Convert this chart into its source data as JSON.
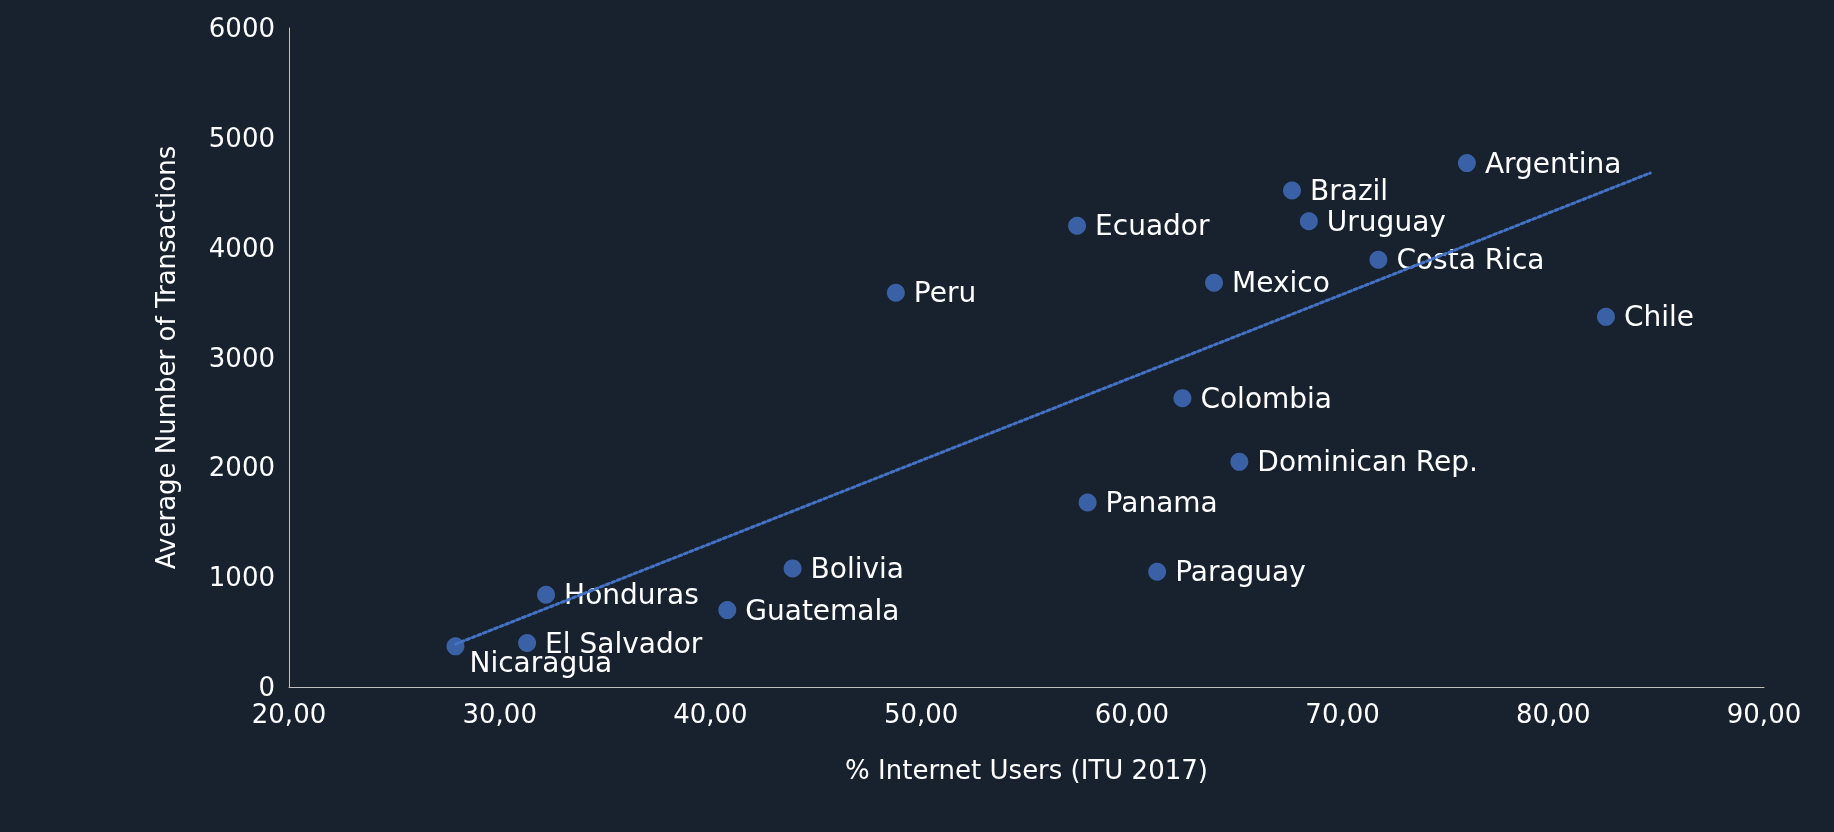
{
  "chart_data": {
    "type": "scatter",
    "xlabel": "% Internet Users (ITU 2017)",
    "ylabel": "Average Number of Transactions",
    "xlim": [
      20,
      90
    ],
    "xticks": [
      {
        "value": 20,
        "label": "20,00"
      },
      {
        "value": 30,
        "label": "30,00"
      },
      {
        "value": 40,
        "label": "40,00"
      },
      {
        "value": 50,
        "label": "50,00"
      },
      {
        "value": 60,
        "label": "60,00"
      },
      {
        "value": 70,
        "label": "70,00"
      },
      {
        "value": 80,
        "label": "80,00"
      },
      {
        "value": 90,
        "label": "90,00"
      }
    ],
    "ylim": [
      0,
      6000
    ],
    "yticks": [
      0,
      1000,
      2000,
      3000,
      4000,
      5000,
      6000
    ],
    "grid": false,
    "marker": "circle",
    "series": [
      {
        "color": "#4472c4",
        "x": [
          27.9,
          31.3,
          32.2,
          40.8,
          43.9,
          48.8,
          57.4,
          57.9,
          61.2,
          62.4,
          63.9,
          65.1,
          67.6,
          68.4,
          71.7,
          75.9,
          82.5
        ],
        "values": [
          370,
          400,
          840,
          700,
          1080,
          3590,
          4200,
          1680,
          1050,
          2630,
          3680,
          2050,
          4520,
          4240,
          3890,
          4770,
          3370
        ]
      },
      {
        "type": "line",
        "color": "#4472c4",
        "line_style": "dotted",
        "marker": "none",
        "x": [
          27.9,
          84.6
        ],
        "values": [
          390,
          4680
        ]
      }
    ],
    "annotations": [
      {
        "text": "El Salvador",
        "x": 31.3,
        "y": 400
      },
      {
        "text": "Nicaragua",
        "x": 27.9,
        "y": 370
      },
      {
        "text": "Honduras",
        "x": 32.2,
        "y": 840
      },
      {
        "text": "Guatemala",
        "x": 40.8,
        "y": 700
      },
      {
        "text": "Bolivia",
        "x": 43.9,
        "y": 1080
      },
      {
        "text": "Peru",
        "x": 48.8,
        "y": 3590
      },
      {
        "text": "Ecuador",
        "x": 57.4,
        "y": 4200
      },
      {
        "text": "Panama",
        "x": 57.9,
        "y": 1680
      },
      {
        "text": "Paraguay",
        "x": 61.2,
        "y": 1050
      },
      {
        "text": "Colombia",
        "x": 62.4,
        "y": 2630
      },
      {
        "text": "Mexico",
        "x": 63.9,
        "y": 3680
      },
      {
        "text": "Dominican Rep.",
        "x": 65.1,
        "y": 2050
      },
      {
        "text": "Brazil",
        "x": 67.6,
        "y": 4520
      },
      {
        "text": "Uruguay",
        "x": 68.4,
        "y": 4240
      },
      {
        "text": "Costa Rica",
        "x": 71.7,
        "y": 3890
      },
      {
        "text": "Argentina",
        "x": 75.9,
        "y": 4770
      },
      {
        "text": "Chile",
        "x": 82.5,
        "y": 3370
      }
    ]
  }
}
